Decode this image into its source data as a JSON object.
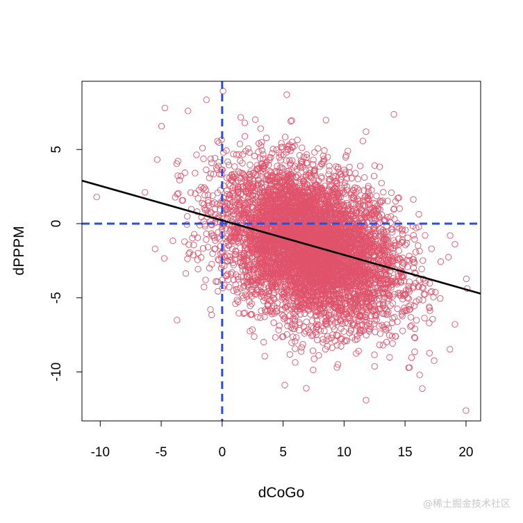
{
  "chart_data": {
    "type": "scatter",
    "title": "",
    "xlabel": "dCoGo",
    "ylabel": "dPPPM",
    "xlim": [
      -11.5,
      21.2
    ],
    "ylim": [
      -13.3,
      9.6
    ],
    "x_ticks": [
      -10,
      -5,
      0,
      5,
      10,
      15,
      20
    ],
    "y_ticks": [
      -10,
      -5,
      0,
      5
    ],
    "grid": false,
    "point_color": "#df536b",
    "reference_line_color": "#2a4de0",
    "fit_line_color": "#000000",
    "vertical_reference": {
      "x": 0
    },
    "horizontal_reference": {
      "y": 0
    },
    "fit_line": {
      "intercept": 0.22,
      "slope": -0.233
    },
    "cloud": {
      "n": 6000,
      "x_mean": 7.2,
      "x_sd": 3.6,
      "y_mean": -1.5,
      "y_sd": 2.6,
      "correlation": -0.33
    },
    "notable_points": [
      {
        "x": -10.3,
        "y": 1.8
      },
      {
        "x": -4.7,
        "y": 7.8
      },
      {
        "x": -2.8,
        "y": 7.6
      },
      {
        "x": 5.3,
        "y": 8.7
      },
      {
        "x": 11.8,
        "y": 6.2
      },
      {
        "x": 6.9,
        "y": -11.1
      },
      {
        "x": 11.8,
        "y": -11.9
      },
      {
        "x": 16.2,
        "y": -10.2
      },
      {
        "x": 20.0,
        "y": -12.6
      },
      {
        "x": -3.7,
        "y": -6.5
      },
      {
        "x": -5.5,
        "y": -1.7
      },
      {
        "x": 18.7,
        "y": -0.8
      }
    ]
  },
  "watermark": "@稀土掘金技术社区"
}
